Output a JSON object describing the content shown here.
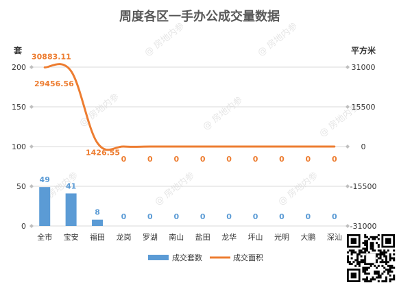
{
  "chart_data": {
    "type": "bar+line",
    "title": "周度各区一手办公成交量数据",
    "left_unit": "套",
    "right_unit": "平方米",
    "categories": [
      "全市",
      "宝安",
      "福田",
      "龙岗",
      "罗湖",
      "南山",
      "盐田",
      "龙华",
      "坪山",
      "光明",
      "大鹏",
      "深汕"
    ],
    "series": [
      {
        "name": "成交套数",
        "type": "bar",
        "axis": "left",
        "values": [
          49,
          41,
          8,
          0,
          0,
          0,
          0,
          0,
          0,
          0,
          0,
          0
        ],
        "labels": [
          "49",
          "41",
          "8",
          "0",
          "0",
          "0",
          "0",
          "0",
          "0",
          "0",
          "0",
          "0"
        ],
        "color": "#5b9bd5"
      },
      {
        "name": "成交面积",
        "type": "line",
        "axis": "right",
        "values": [
          30883.11,
          29456.56,
          1426.55,
          0,
          0,
          0,
          0,
          0,
          0,
          0,
          0,
          0
        ],
        "labels": [
          "30883.11",
          "29456.56",
          "1426.55",
          "0",
          "0",
          "0",
          "0",
          "0",
          "0",
          "0",
          "0",
          "0"
        ],
        "color": "#ed7d31"
      }
    ],
    "left_axis": {
      "ylim": [
        0,
        200
      ],
      "ticks": [
        0,
        50,
        100,
        150,
        200
      ]
    },
    "right_axis": {
      "ylim": [
        -31000,
        31000
      ],
      "ticks": [
        -31000,
        -15500,
        0,
        15500,
        31000
      ]
    },
    "grid": true,
    "legend_position": "bottom"
  },
  "watermark": "@ 房地内参",
  "accent_bar": "#5b9bd5",
  "accent_line": "#ed7d31"
}
